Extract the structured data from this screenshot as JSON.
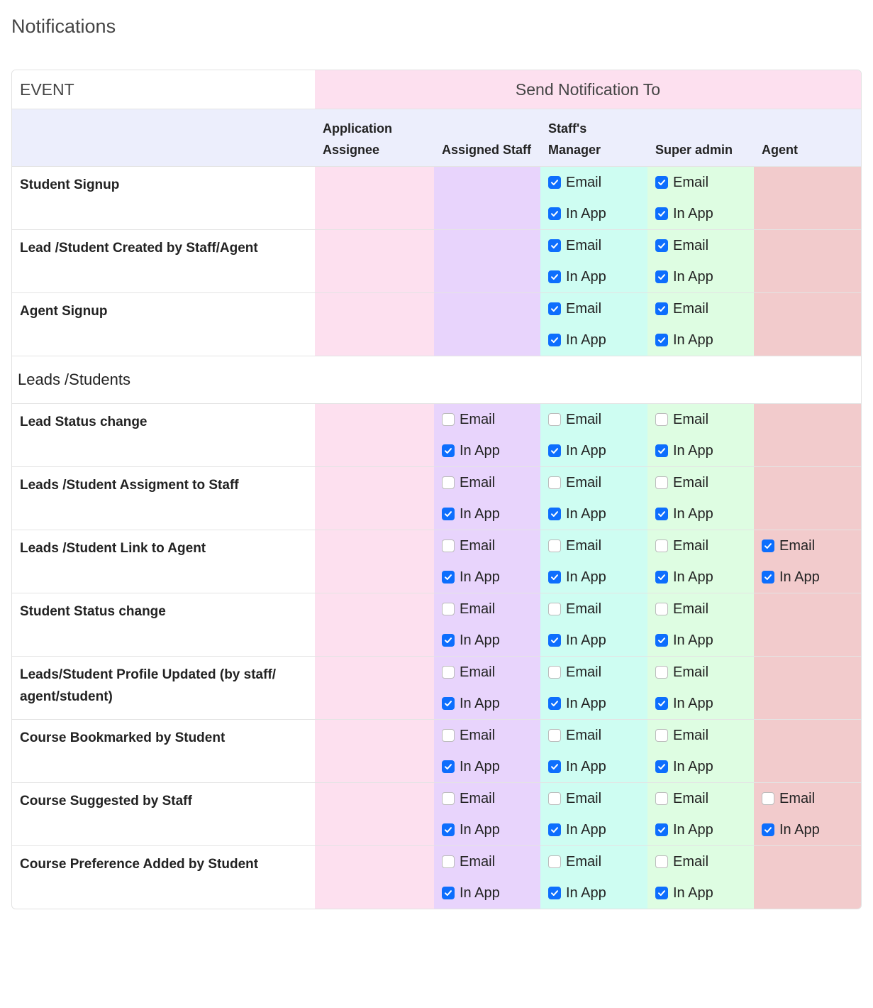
{
  "title": "Notifications",
  "table": {
    "event_header": "EVENT",
    "group_header": "Send Notification To",
    "columns": [
      {
        "name": "Application Assignee",
        "color": "#fde0ef"
      },
      {
        "name": "Assigned Staff",
        "color": "#e8d4fc"
      },
      {
        "name": "Staff's Manager",
        "color": "#cefdf2"
      },
      {
        "name": "Super admin",
        "color": "#defde2"
      },
      {
        "name": "Agent",
        "color": "#f2cbcc"
      }
    ],
    "rows": [
      {
        "event": "Student Signup",
        "cells": [
          null,
          null,
          [
            {
              "label": "Email",
              "checked": true
            },
            {
              "label": "In App",
              "checked": true
            }
          ],
          [
            {
              "label": "Email",
              "checked": true
            },
            {
              "label": "In App",
              "checked": true
            }
          ],
          null
        ]
      },
      {
        "event": "Lead /Student Created by Staff/Agent",
        "cells": [
          null,
          null,
          [
            {
              "label": "Email",
              "checked": true
            },
            {
              "label": "In App",
              "checked": true
            }
          ],
          [
            {
              "label": "Email",
              "checked": true
            },
            {
              "label": "In App",
              "checked": true
            }
          ],
          null
        ]
      },
      {
        "event": "Agent Signup",
        "cells": [
          null,
          null,
          [
            {
              "label": "Email",
              "checked": true
            },
            {
              "label": "In App",
              "checked": true
            }
          ],
          [
            {
              "label": "Email",
              "checked": true
            },
            {
              "label": "In App",
              "checked": true
            }
          ],
          null
        ]
      },
      {
        "section": "Leads /Students"
      },
      {
        "event": "Lead Status change",
        "cells": [
          null,
          [
            {
              "label": "Email",
              "checked": false
            },
            {
              "label": "In App",
              "checked": true
            }
          ],
          [
            {
              "label": "Email",
              "checked": false
            },
            {
              "label": "In App",
              "checked": true
            }
          ],
          [
            {
              "label": "Email",
              "checked": false
            },
            {
              "label": "In App",
              "checked": true
            }
          ],
          null
        ]
      },
      {
        "event": "Leads /Student Assigment to Staff",
        "cells": [
          null,
          [
            {
              "label": "Email",
              "checked": false
            },
            {
              "label": "In App",
              "checked": true
            }
          ],
          [
            {
              "label": "Email",
              "checked": false
            },
            {
              "label": "In App",
              "checked": true
            }
          ],
          [
            {
              "label": "Email",
              "checked": false
            },
            {
              "label": "In App",
              "checked": true
            }
          ],
          null
        ]
      },
      {
        "event": "Leads /Student Link to Agent",
        "cells": [
          null,
          [
            {
              "label": "Email",
              "checked": false
            },
            {
              "label": "In App",
              "checked": true
            }
          ],
          [
            {
              "label": "Email",
              "checked": false
            },
            {
              "label": "In App",
              "checked": true
            }
          ],
          [
            {
              "label": "Email",
              "checked": false
            },
            {
              "label": "In App",
              "checked": true
            }
          ],
          [
            {
              "label": "Email",
              "checked": true
            },
            {
              "label": "In App",
              "checked": true
            }
          ]
        ]
      },
      {
        "event": "Student Status change",
        "cells": [
          null,
          [
            {
              "label": "Email",
              "checked": false
            },
            {
              "label": "In App",
              "checked": true
            }
          ],
          [
            {
              "label": "Email",
              "checked": false
            },
            {
              "label": "In App",
              "checked": true
            }
          ],
          [
            {
              "label": "Email",
              "checked": false
            },
            {
              "label": "In App",
              "checked": true
            }
          ],
          null
        ]
      },
      {
        "event": "Leads/Student Profile Updated (by staff/ agent/student)",
        "cells": [
          null,
          [
            {
              "label": "Email",
              "checked": false
            },
            {
              "label": "In App",
              "checked": true
            }
          ],
          [
            {
              "label": "Email",
              "checked": false
            },
            {
              "label": "In App",
              "checked": true
            }
          ],
          [
            {
              "label": "Email",
              "checked": false
            },
            {
              "label": "In App",
              "checked": true
            }
          ],
          null
        ]
      },
      {
        "event": "Course Bookmarked by Student",
        "cells": [
          null,
          [
            {
              "label": "Email",
              "checked": false
            },
            {
              "label": "In App",
              "checked": true
            }
          ],
          [
            {
              "label": "Email",
              "checked": false
            },
            {
              "label": "In App",
              "checked": true
            }
          ],
          [
            {
              "label": "Email",
              "checked": false
            },
            {
              "label": "In App",
              "checked": true
            }
          ],
          null
        ]
      },
      {
        "event": "Course Suggested by Staff",
        "cells": [
          null,
          [
            {
              "label": "Email",
              "checked": false
            },
            {
              "label": "In App",
              "checked": true
            }
          ],
          [
            {
              "label": "Email",
              "checked": false
            },
            {
              "label": "In App",
              "checked": true
            }
          ],
          [
            {
              "label": "Email",
              "checked": false
            },
            {
              "label": "In App",
              "checked": true
            }
          ],
          [
            {
              "label": "Email",
              "checked": false
            },
            {
              "label": "In App",
              "checked": true
            }
          ]
        ]
      },
      {
        "event": "Course Preference Added by Student",
        "cells": [
          null,
          [
            {
              "label": "Email",
              "checked": false
            },
            {
              "label": "In App",
              "checked": true
            }
          ],
          [
            {
              "label": "Email",
              "checked": false
            },
            {
              "label": "In App",
              "checked": true
            }
          ],
          [
            {
              "label": "Email",
              "checked": false
            },
            {
              "label": "In App",
              "checked": true
            }
          ],
          null
        ]
      }
    ]
  }
}
